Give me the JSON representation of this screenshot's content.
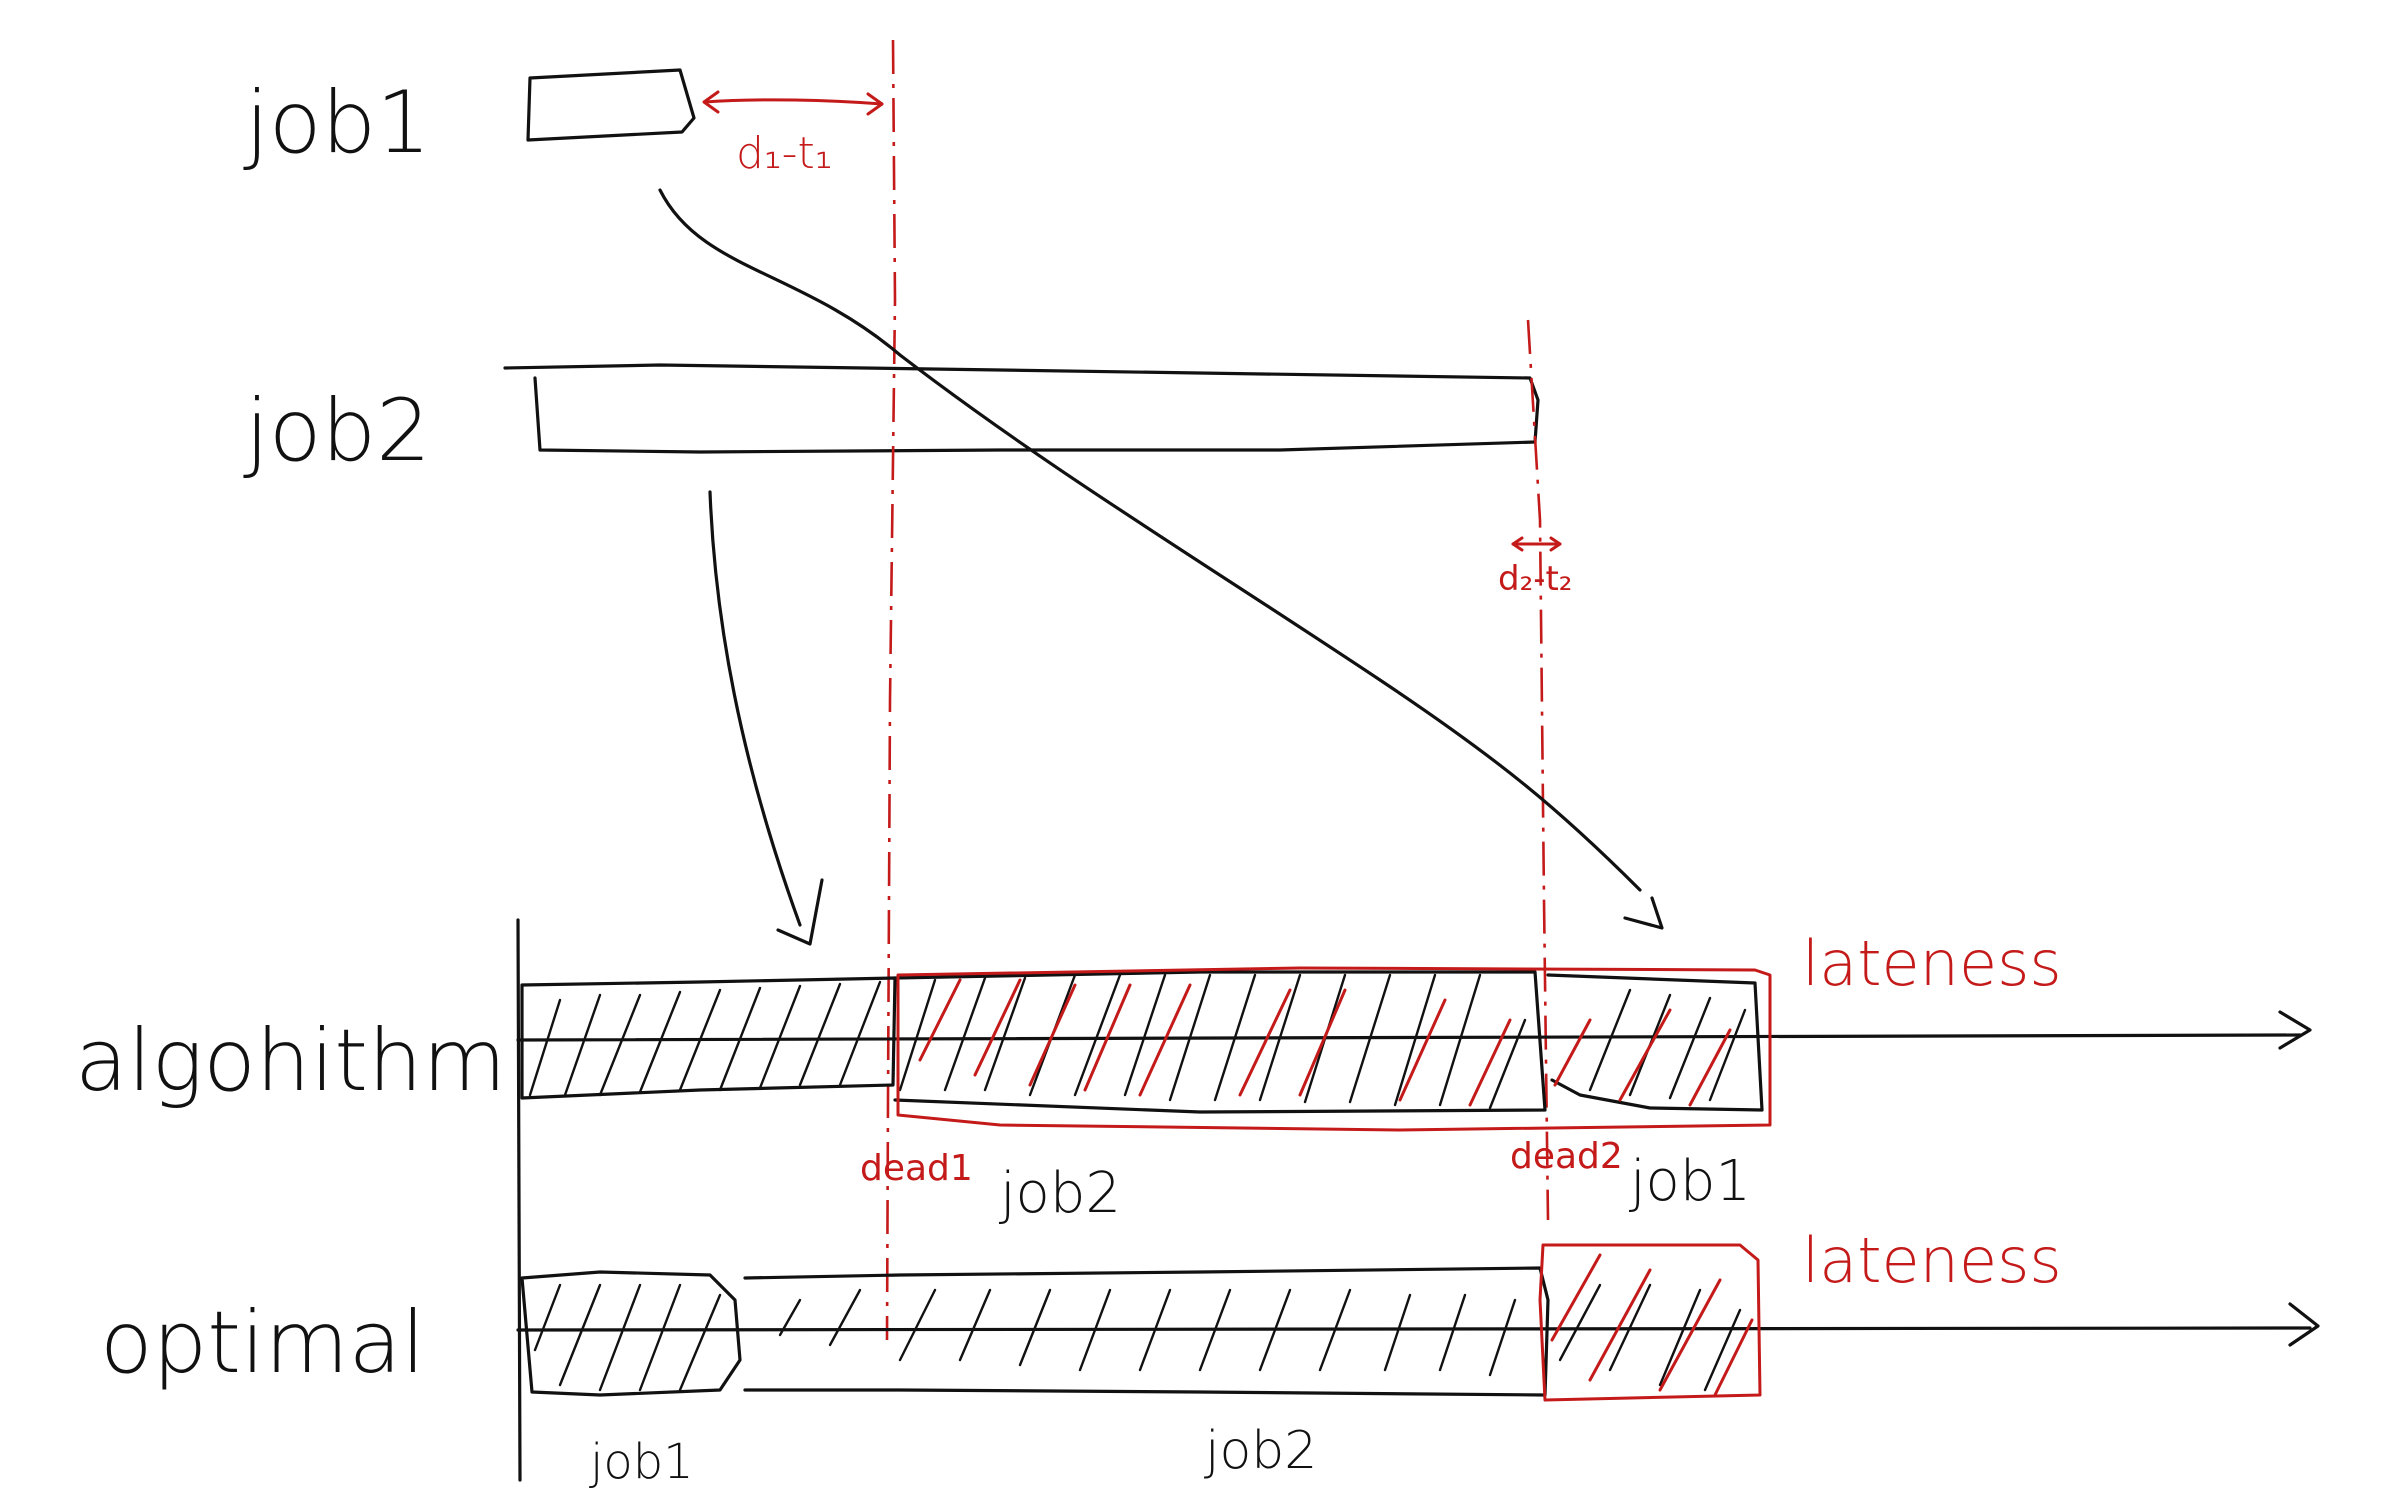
{
  "labels": {
    "job1_top": "job1",
    "job2_top": "job2",
    "algorithm": "algohithm",
    "optimal": "optimal",
    "d1_t1": "d₁-t₁",
    "d2_t2": "d₂-t₂",
    "dead1": "dead1",
    "dead2": "dead2",
    "algo_job2": "job2",
    "algo_job1": "job1",
    "opt_job1": "job1",
    "opt_job2": "job2",
    "lateness_algo": "lateness",
    "lateness_opt": "lateness"
  },
  "colors": {
    "ink": "#111111",
    "annotation": "#c41a1a",
    "background": "#ffffff"
  }
}
